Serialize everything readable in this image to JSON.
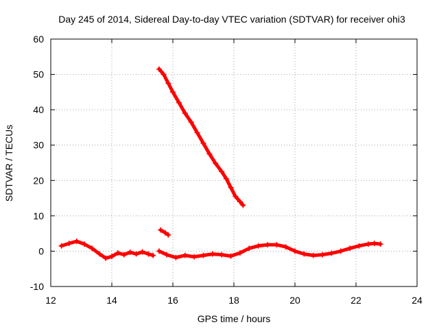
{
  "chart_data": {
    "type": "scatter",
    "title": "Day 245 of 2014, Sidereal Day-to-day VTEC variation (SDTVAR) for receiver ohi3",
    "xlabel": "GPS time / hours",
    "ylabel": "SDTVAR / TECUs",
    "xlim": [
      12,
      24
    ],
    "ylim": [
      -10,
      60
    ],
    "xticks": [
      "12",
      "14",
      "16",
      "18",
      "20",
      "22",
      "24"
    ],
    "yticks": [
      "-10",
      "0",
      "10",
      "20",
      "30",
      "40",
      "50",
      "60"
    ],
    "grid": true,
    "marker_color": "#ff0000",
    "series": [
      {
        "name": "baseline-segment-1",
        "x": [
          12.35,
          12.6,
          12.85,
          13.1,
          13.35,
          13.6,
          13.8,
          14.0,
          14.2,
          14.4,
          14.6,
          14.8,
          15.0,
          15.2,
          15.35
        ],
        "y": [
          1.5,
          2.2,
          2.8,
          2.0,
          0.8,
          -0.8,
          -2.0,
          -1.5,
          -0.5,
          -1.0,
          -0.3,
          -0.8,
          -0.2,
          -0.8,
          -1.2
        ]
      },
      {
        "name": "baseline-segment-2",
        "x": [
          15.55,
          15.8,
          16.1,
          16.4,
          16.7,
          17.0,
          17.3,
          17.6,
          17.9,
          18.2,
          18.5,
          18.8,
          19.1,
          19.4,
          19.7,
          20.0,
          20.3,
          20.6,
          20.9,
          21.2,
          21.5,
          21.8,
          22.1,
          22.4,
          22.6,
          22.8
        ],
        "y": [
          0.0,
          -1.0,
          -1.8,
          -1.2,
          -1.6,
          -1.2,
          -0.8,
          -1.0,
          -1.4,
          -0.5,
          0.8,
          1.5,
          1.8,
          1.8,
          1.2,
          0.0,
          -0.8,
          -1.2,
          -1.0,
          -0.6,
          0.0,
          0.8,
          1.5,
          2.0,
          2.2,
          2.0
        ]
      },
      {
        "name": "descending-arc",
        "x": [
          15.55,
          15.7,
          15.85,
          16.0,
          16.2,
          16.4,
          16.6,
          16.8,
          17.0,
          17.2,
          17.4,
          17.6,
          17.75,
          17.9,
          18.05,
          18.2,
          18.3
        ],
        "y": [
          51.5,
          50.0,
          47.5,
          45.0,
          42.0,
          39.0,
          36.5,
          33.5,
          30.5,
          27.5,
          24.8,
          22.5,
          20.5,
          18.0,
          15.5,
          14.0,
          13.0
        ]
      },
      {
        "name": "short-segment",
        "x": [
          15.6,
          15.75,
          15.85
        ],
        "y": [
          6.0,
          5.2,
          4.6
        ]
      }
    ]
  }
}
